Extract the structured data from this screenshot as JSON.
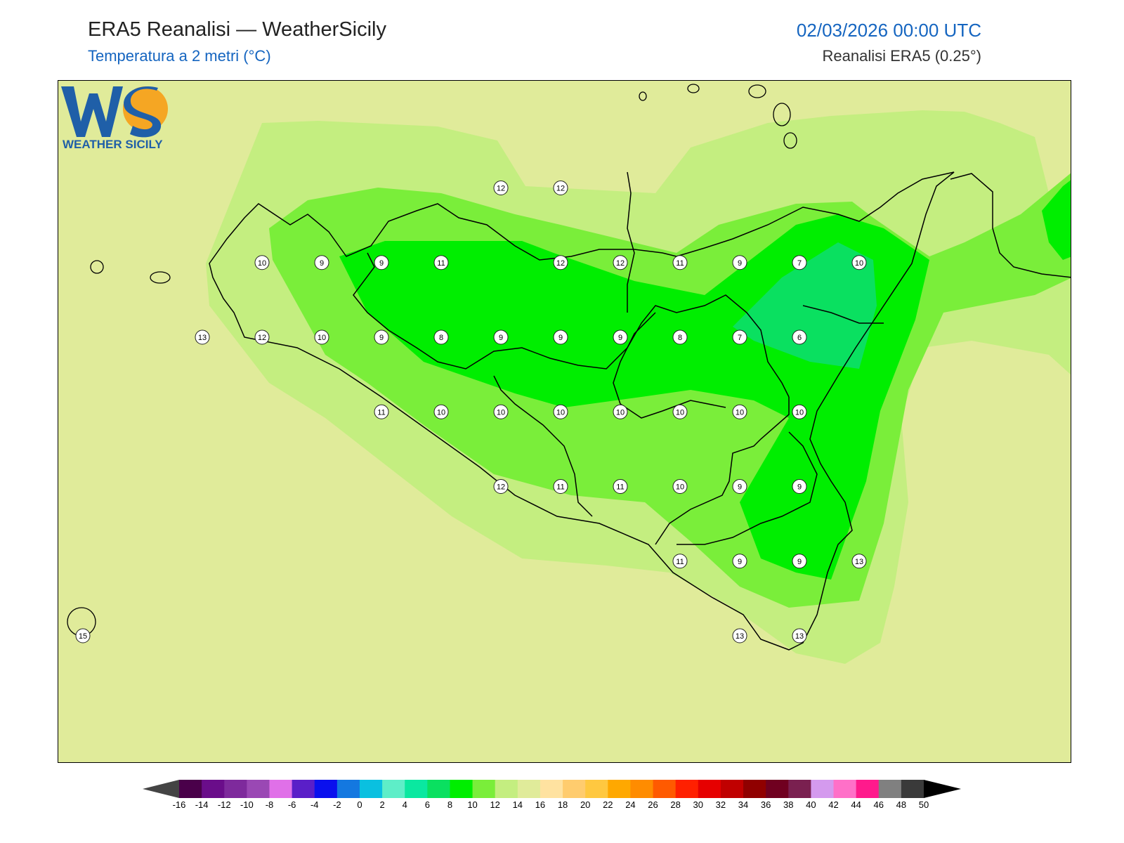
{
  "header": {
    "title": "ERA5 Reanalisi — WeatherSicily",
    "subtitle": "Temperatura a 2 metri (°C)",
    "datetime": "02/03/2026 00:00 UTC",
    "source": "Reanalisi ERA5 (0.25°)"
  },
  "logo": {
    "letters": "WS",
    "text": "WEATHER SICILY"
  },
  "colorbar": {
    "colors": [
      "#4a004a",
      "#6a0d8a",
      "#7e2a9c",
      "#9a48b4",
      "#e070e8",
      "#5a1fc8",
      "#0a10ee",
      "#1478e0",
      "#0ac0e0",
      "#5eeec8",
      "#0ae8a0",
      "#0ae060",
      "#00ee00",
      "#7aee3a",
      "#c4ee80",
      "#e0eb9a",
      "#ffe2a0",
      "#ffcc6e",
      "#ffc840",
      "#ffa800",
      "#ff8c00",
      "#ff5a00",
      "#ff2000",
      "#e60000",
      "#c00000",
      "#900000",
      "#700020",
      "#7a2050",
      "#d49aee",
      "#ff70c8",
      "#ff1a8c",
      "#808080",
      "#3a3a3a"
    ],
    "tick_labels": [
      "-16",
      "-14",
      "-12",
      "-10",
      "-8",
      "-6",
      "-4",
      "-2",
      "0",
      "2",
      "4",
      "6",
      "8",
      "10",
      "12",
      "14",
      "16",
      "18",
      "20",
      "22",
      "24",
      "26",
      "28",
      "30",
      "32",
      "34",
      "36",
      "38",
      "40",
      "42",
      "44",
      "46",
      "48",
      "50"
    ]
  },
  "stations": [
    {
      "v": "12",
      "lon": 14.5,
      "lat": 38.5
    },
    {
      "v": "12",
      "lon": 15.0,
      "lat": 38.5
    },
    {
      "v": "10",
      "lon": 12.5,
      "lat": 38.25
    },
    {
      "v": "9",
      "lon": 13.0,
      "lat": 38.25
    },
    {
      "v": "9",
      "lon": 13.5,
      "lat": 38.25
    },
    {
      "v": "11",
      "lon": 14.0,
      "lat": 38.25
    },
    {
      "v": "12",
      "lon": 15.0,
      "lat": 38.25
    },
    {
      "v": "12",
      "lon": 15.5,
      "lat": 38.25
    },
    {
      "v": "11",
      "lon": 16.0,
      "lat": 38.25
    },
    {
      "v": "9",
      "lon": 16.5,
      "lat": 38.25
    },
    {
      "v": "7",
      "lon": 17.0,
      "lat": 38.25
    },
    {
      "v": "10",
      "lon": 17.5,
      "lat": 38.25
    },
    {
      "v": "13",
      "lon": 12.0,
      "lat": 38.0
    },
    {
      "v": "12",
      "lon": 12.5,
      "lat": 38.0
    },
    {
      "v": "10",
      "lon": 13.0,
      "lat": 38.0
    },
    {
      "v": "9",
      "lon": 13.5,
      "lat": 38.0
    },
    {
      "v": "8",
      "lon": 14.0,
      "lat": 38.0
    },
    {
      "v": "9",
      "lon": 14.5,
      "lat": 38.0
    },
    {
      "v": "9",
      "lon": 15.0,
      "lat": 38.0
    },
    {
      "v": "9",
      "lon": 15.5,
      "lat": 38.0
    },
    {
      "v": "8",
      "lon": 16.0,
      "lat": 38.0
    },
    {
      "v": "7",
      "lon": 16.5,
      "lat": 38.0
    },
    {
      "v": "6",
      "lon": 17.0,
      "lat": 38.0
    },
    {
      "v": "11",
      "lon": 13.5,
      "lat": 37.75
    },
    {
      "v": "10",
      "lon": 14.0,
      "lat": 37.75
    },
    {
      "v": "10",
      "lon": 14.5,
      "lat": 37.75
    },
    {
      "v": "10",
      "lon": 15.0,
      "lat": 37.75
    },
    {
      "v": "10",
      "lon": 15.5,
      "lat": 37.75
    },
    {
      "v": "10",
      "lon": 16.0,
      "lat": 37.75
    },
    {
      "v": "10",
      "lon": 16.5,
      "lat": 37.75
    },
    {
      "v": "10",
      "lon": 17.0,
      "lat": 37.75
    },
    {
      "v": "12",
      "lon": 14.5,
      "lat": 37.5
    },
    {
      "v": "11",
      "lon": 15.0,
      "lat": 37.5
    },
    {
      "v": "11",
      "lon": 15.5,
      "lat": 37.5
    },
    {
      "v": "10",
      "lon": 16.0,
      "lat": 37.5
    },
    {
      "v": "9",
      "lon": 16.5,
      "lat": 37.5
    },
    {
      "v": "9",
      "lon": 17.0,
      "lat": 37.5
    },
    {
      "v": "11",
      "lon": 16.0,
      "lat": 37.25
    },
    {
      "v": "9",
      "lon": 16.5,
      "lat": 37.25
    },
    {
      "v": "9",
      "lon": 17.0,
      "lat": 37.25
    },
    {
      "v": "13",
      "lon": 17.5,
      "lat": 37.25
    },
    {
      "v": "15",
      "lon": 11.0,
      "lat": 37.0
    },
    {
      "v": "13",
      "lon": 16.5,
      "lat": 37.0
    },
    {
      "v": "13",
      "lon": 17.0,
      "lat": 37.0
    }
  ]
}
